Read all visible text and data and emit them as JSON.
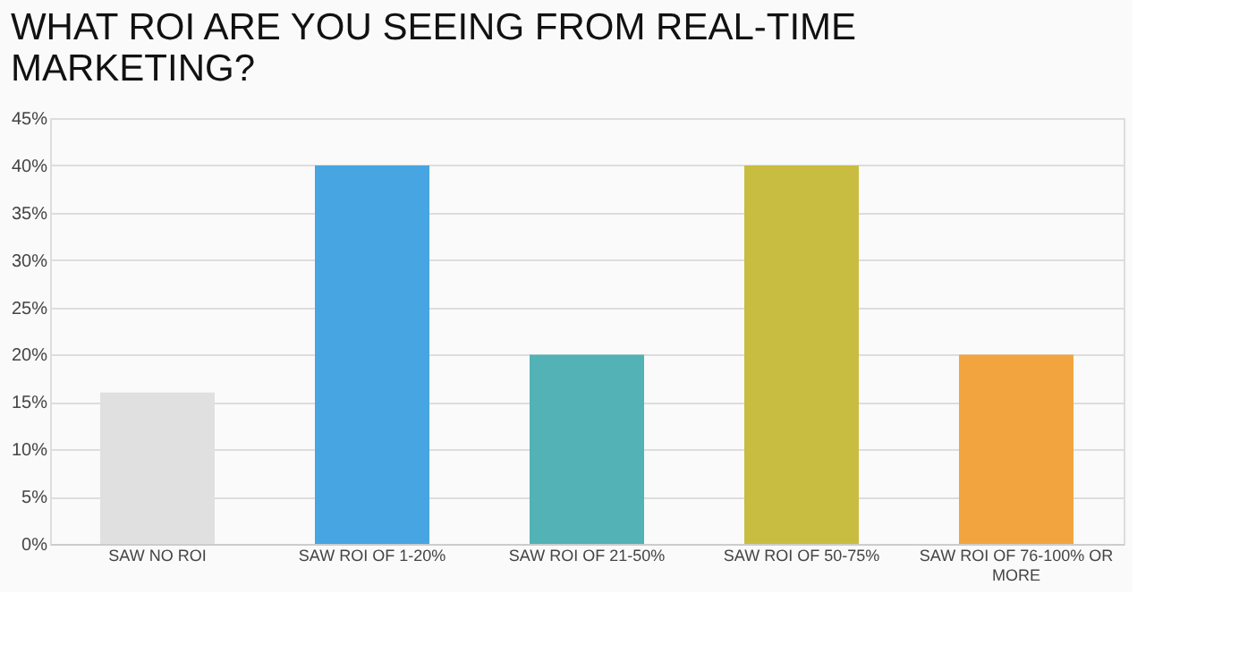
{
  "chart_data": {
    "type": "bar",
    "title": [
      "WHAT ROI ARE YOU SEEING FROM REAL-TIME",
      "MARKETING?"
    ],
    "categories": [
      "SAW NO ROI",
      "SAW ROI OF 1-20%",
      "SAW ROI OF 21-50%",
      "SAW ROI OF 50-75%",
      "SAW ROI OF 76-100% OR MORE"
    ],
    "values": [
      16,
      40,
      20,
      40,
      20
    ],
    "colors": [
      "#e0e0e0",
      "#47a5e2",
      "#52b2b5",
      "#c8bd40",
      "#f2a43f"
    ],
    "ylim": [
      0,
      45
    ],
    "yticks": [
      {
        "value": 0,
        "label": "0%"
      },
      {
        "value": 5,
        "label": "5%"
      },
      {
        "value": 10,
        "label": "10%"
      },
      {
        "value": 15,
        "label": "15%"
      },
      {
        "value": 20,
        "label": "20%"
      },
      {
        "value": 25,
        "label": "25%"
      },
      {
        "value": 30,
        "label": "30%"
      },
      {
        "value": 35,
        "label": "35%"
      },
      {
        "value": 40,
        "label": "40%"
      },
      {
        "value": 45,
        "label": "45%"
      }
    ],
    "grid": "y"
  }
}
